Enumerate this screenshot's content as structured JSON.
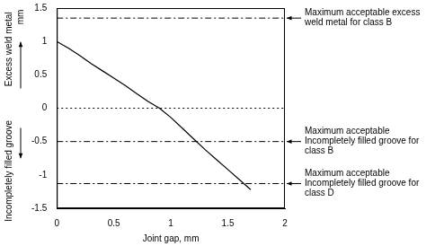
{
  "chart_data": {
    "type": "line",
    "x_label": "Joint gap, mm",
    "y_label": {
      "upper": "Excess weld metal",
      "unit": "mm",
      "lower": "Incompletely filled groove"
    },
    "series": [
      {
        "color": "#000000",
        "line_style": "solid",
        "x": [
          0,
          0.1,
          0.2,
          0.3,
          0.4,
          0.5,
          0.6,
          0.7,
          0.8,
          0.9,
          1.0,
          1.1,
          1.2,
          1.3,
          1.4,
          1.5,
          1.6,
          1.7
        ],
        "values": [
          1.0,
          0.9,
          0.79,
          0.67,
          0.56,
          0.45,
          0.34,
          0.22,
          0.1,
          0.0,
          -0.14,
          -0.3,
          -0.46,
          -0.62,
          -0.77,
          -0.92,
          -1.07,
          -1.22
        ]
      }
    ],
    "xlim": [
      0,
      2
    ],
    "xticks": [
      0,
      0.5,
      1,
      1.5,
      2
    ],
    "ylim": [
      -1.5,
      1.5
    ],
    "yticks": [
      -1.5,
      -1,
      -0.5,
      0,
      0.5,
      1,
      1.5
    ],
    "grid": false,
    "annotations": [
      {
        "y": 1.35,
        "line_style": "dashdot",
        "label": "Maximum acceptable excess\nweld metal for class B"
      },
      {
        "y": 0,
        "line_style": "dotted"
      },
      {
        "y": -0.5,
        "line_style": "dashdot",
        "label": "Maximum acceptable\nIncompletely filled groove for\nclass B"
      },
      {
        "y": -1.13,
        "line_style": "dashdot",
        "label": "Maximum acceptable\nIncompletely filled groove for\nclass D"
      }
    ]
  }
}
